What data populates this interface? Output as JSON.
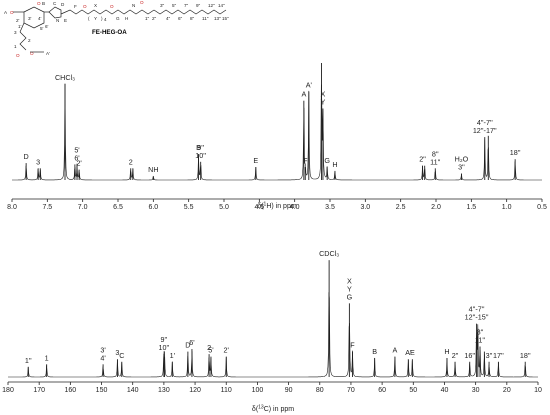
{
  "structure": {
    "compound_name": "FE-HEG-OA",
    "atom_labels": [
      "A",
      "B",
      "C",
      "D",
      "E",
      "F",
      "G",
      "H",
      "X",
      "Y",
      "A'",
      "1",
      "2",
      "3",
      "1'",
      "2'",
      "3'",
      "4'",
      "5'",
      "6'",
      "1''",
      "2''",
      "3''",
      "4''",
      "5''",
      "6''",
      "7''",
      "8''",
      "9''",
      "10''",
      "11''",
      "12''",
      "13''",
      "14''",
      "15''",
      "16''",
      "17''",
      "18''"
    ],
    "repeat_index": "4",
    "nitrogen_label": "N"
  },
  "chart_data": [
    {
      "type": "line",
      "title": "",
      "xlabel": "δ(¹H) in ppm",
      "xlabel_parts": {
        "pre": "δ(",
        "sup": "1",
        "post": "H) in ppm"
      },
      "x_reversed": true,
      "xlim": [
        8.0,
        0.5
      ],
      "xticks": [
        "8.0",
        "7.5",
        "7.0",
        "6.5",
        "6.0",
        "5.5",
        "5.0",
        "4.5",
        "4.0",
        "3.5",
        "3.0",
        "2.5",
        "2.0",
        "1.5",
        "1.0",
        "0.5"
      ],
      "grid": false,
      "peaks": [
        {
          "x": 7.8,
          "height": 0.13,
          "label": [
            "D"
          ]
        },
        {
          "x": 7.63,
          "height": 0.09,
          "label": [
            "3"
          ]
        },
        {
          "x": 7.6,
          "height": 0.09,
          "label": []
        },
        {
          "x": 7.11,
          "height": 0.12,
          "label": []
        },
        {
          "x": 7.08,
          "height": 0.12,
          "label": [
            "5'",
            "6'"
          ]
        },
        {
          "x": 7.05,
          "height": 0.08,
          "label": [
            "2'"
          ]
        },
        {
          "x": 7.25,
          "height": 0.74,
          "label": [
            "CHCl₃"
          ]
        },
        {
          "x": 6.32,
          "height": 0.09,
          "label": [
            "2"
          ]
        },
        {
          "x": 6.29,
          "height": 0.09,
          "label": []
        },
        {
          "x": 6.0,
          "height": 0.03,
          "label": [
            "NH"
          ]
        },
        {
          "x": 5.36,
          "height": 0.2,
          "label": [
            "B"
          ]
        },
        {
          "x": 5.33,
          "height": 0.14,
          "label": [
            "9''",
            "10''"
          ]
        },
        {
          "x": 4.55,
          "height": 0.1,
          "label": [
            "E"
          ]
        },
        {
          "x": 3.87,
          "height": 0.61,
          "label": [
            "A"
          ]
        },
        {
          "x": 3.85,
          "height": 0.1,
          "label": [
            "F"
          ]
        },
        {
          "x": 3.8,
          "height": 0.68,
          "label": [
            "A'"
          ]
        },
        {
          "x": 3.62,
          "height": 0.9,
          "label": []
        },
        {
          "x": 3.6,
          "height": 0.55,
          "label": [
            "X",
            "Y"
          ]
        },
        {
          "x": 3.54,
          "height": 0.1,
          "label": [
            "G"
          ]
        },
        {
          "x": 3.43,
          "height": 0.07,
          "label": [
            "H"
          ]
        },
        {
          "x": 2.19,
          "height": 0.11,
          "label": [
            "2''"
          ]
        },
        {
          "x": 2.16,
          "height": 0.11,
          "label": []
        },
        {
          "x": 2.01,
          "height": 0.09,
          "label": [
            "8''",
            "11''"
          ]
        },
        {
          "x": 1.64,
          "height": 0.05,
          "label": [
            "H₂O",
            "3''"
          ]
        },
        {
          "x": 1.31,
          "height": 0.33,
          "label": [
            "4''-7''",
            "12''-17''"
          ]
        },
        {
          "x": 1.26,
          "height": 0.34,
          "label": []
        },
        {
          "x": 0.88,
          "height": 0.16,
          "label": [
            "18''"
          ]
        }
      ]
    },
    {
      "type": "line",
      "title": "",
      "xlabel": "δ(¹³C) in ppm",
      "xlabel_parts": {
        "pre": "δ(",
        "sup": "13",
        "post": "C) in ppm"
      },
      "x_reversed": true,
      "xlim": [
        180,
        10
      ],
      "xticks": [
        "180",
        "170",
        "160",
        "150",
        "140",
        "130",
        "120",
        "110",
        "100",
        "90",
        "80",
        "70",
        "60",
        "50",
        "40",
        "30",
        "20",
        "10"
      ],
      "grid": false,
      "peaks": [
        {
          "x": 173.5,
          "height": 0.08,
          "label": [
            "1''"
          ]
        },
        {
          "x": 167.6,
          "height": 0.1,
          "label": [
            "1"
          ]
        },
        {
          "x": 149.5,
          "height": 0.1,
          "label": [
            "3'",
            "4'"
          ]
        },
        {
          "x": 144.9,
          "height": 0.14,
          "label": [
            "3"
          ]
        },
        {
          "x": 143.5,
          "height": 0.12,
          "label": [
            "C"
          ]
        },
        {
          "x": 130.0,
          "height": 0.18,
          "label": [
            "9''",
            "10''"
          ]
        },
        {
          "x": 129.8,
          "height": 0.16,
          "label": []
        },
        {
          "x": 127.3,
          "height": 0.12,
          "label": [
            "1'"
          ]
        },
        {
          "x": 122.3,
          "height": 0.2,
          "label": [
            "D"
          ]
        },
        {
          "x": 121.0,
          "height": 0.22,
          "label": [
            "6'"
          ]
        },
        {
          "x": 115.5,
          "height": 0.18,
          "label": [
            "2"
          ]
        },
        {
          "x": 114.9,
          "height": 0.16,
          "label": [
            "5'"
          ]
        },
        {
          "x": 110.0,
          "height": 0.16,
          "label": [
            "2'"
          ]
        },
        {
          "x": 77.0,
          "height": 0.92,
          "label": [
            "CDCl₃"
          ]
        },
        {
          "x": 70.5,
          "height": 0.58,
          "label": [
            "X",
            "Y",
            "G"
          ]
        },
        {
          "x": 69.5,
          "height": 0.2,
          "label": [
            "F"
          ]
        },
        {
          "x": 62.4,
          "height": 0.15,
          "label": [
            "B"
          ]
        },
        {
          "x": 55.9,
          "height": 0.16,
          "label": [
            "A"
          ]
        },
        {
          "x": 51.6,
          "height": 0.14,
          "label": [
            "A'"
          ]
        },
        {
          "x": 50.3,
          "height": 0.14,
          "label": [
            "E"
          ]
        },
        {
          "x": 39.2,
          "height": 0.15,
          "label": [
            "H"
          ]
        },
        {
          "x": 36.6,
          "height": 0.12,
          "label": [
            "2''"
          ]
        },
        {
          "x": 31.9,
          "height": 0.12,
          "label": [
            "16''"
          ]
        },
        {
          "x": 29.7,
          "height": 0.42,
          "label": [
            "4''-7''",
            "12''-15''"
          ]
        },
        {
          "x": 29.3,
          "height": 0.38,
          "label": []
        },
        {
          "x": 28.6,
          "height": 0.24,
          "label": [
            "8''",
            "11''"
          ]
        },
        {
          "x": 27.2,
          "height": 0.2,
          "label": []
        },
        {
          "x": 25.7,
          "height": 0.12,
          "label": [
            "3''"
          ]
        },
        {
          "x": 22.7,
          "height": 0.12,
          "label": [
            "17''"
          ]
        },
        {
          "x": 14.1,
          "height": 0.12,
          "label": [
            "18''"
          ]
        }
      ]
    }
  ]
}
